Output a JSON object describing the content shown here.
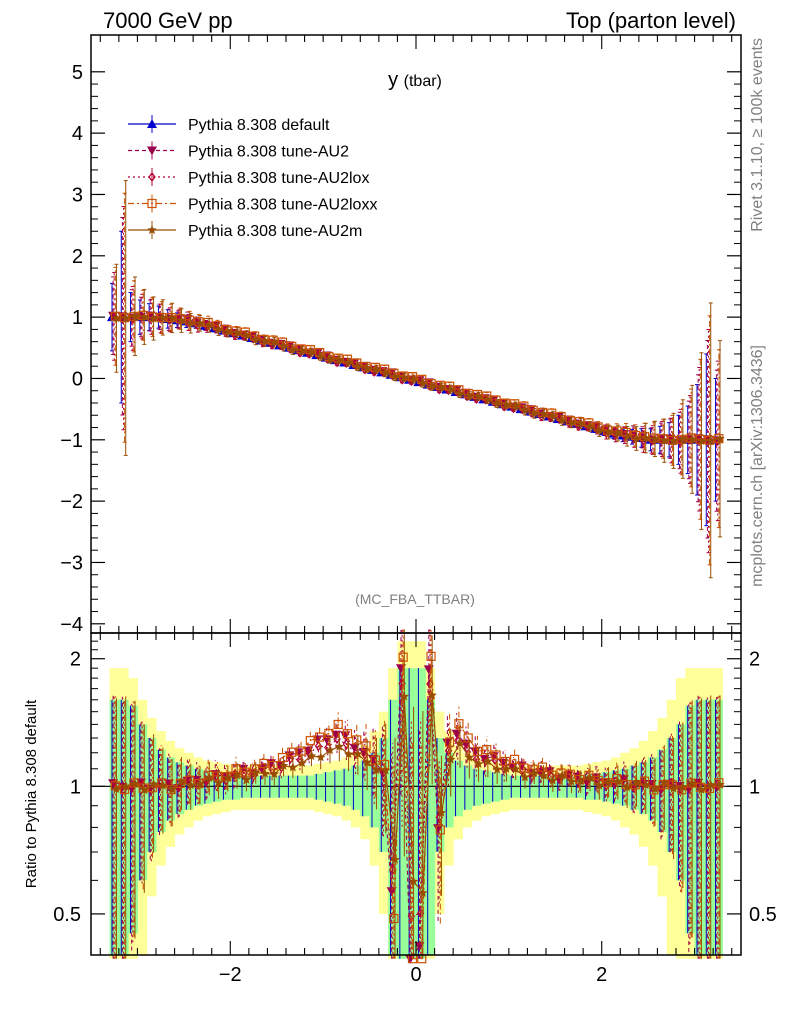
{
  "header": {
    "left": "7000 GeV pp",
    "right": "Top (parton level)"
  },
  "side_text": {
    "rivet": "Rivet 3.1.10, ≥ 100k events",
    "mcplots": "mcplots.cern.ch [arXiv:1306.3436]"
  },
  "chart_data": [
    {
      "type": "line",
      "title": "y (tbar)",
      "title_main": "y",
      "title_sub": "(tbar)",
      "watermark": "(MC_FBA_TTBAR)",
      "xlim": [
        -3.5,
        3.5
      ],
      "ylim": [
        -4.15,
        5.6
      ],
      "y_ticks": [
        -4,
        -3,
        -2,
        -1,
        0,
        1,
        2,
        3,
        4,
        5
      ],
      "y_tick_labels": [
        "−4",
        "−3",
        "−2",
        "−1",
        "0",
        "1",
        "2",
        "3",
        "4",
        "5"
      ],
      "legend_position": "top-left",
      "series": [
        {
          "name": "Pythia 8.308 default",
          "color": "#0000cc",
          "marker": "triangle-up",
          "dash": "solid",
          "offset": 0.0
        },
        {
          "name": "Pythia 8.308 tune-AU2",
          "color": "#99004d",
          "marker": "triangle-down",
          "dash": "4,3",
          "offset": 0.02
        },
        {
          "name": "Pythia 8.308 tune-AU2lox",
          "color": "#b30033",
          "marker": "diamond-open",
          "dash": "2,3",
          "offset": -0.02
        },
        {
          "name": "Pythia 8.308 tune-AU2loxx",
          "color": "#cc5200",
          "marker": "square-open",
          "dash": "6,3,2,3",
          "offset": 0.035
        },
        {
          "name": "Pythia 8.308 tune-AU2m",
          "color": "#994d00",
          "marker": "star",
          "dash": "solid",
          "offset": -0.01
        }
      ],
      "x": [
        -3.25,
        -3.15,
        -3.05,
        -2.95,
        -2.85,
        -2.75,
        -2.65,
        -2.55,
        -2.45,
        -2.35,
        -2.25,
        -2.15,
        -2.05,
        -1.95,
        -1.85,
        -1.75,
        -1.65,
        -1.55,
        -1.45,
        -1.35,
        -1.25,
        -1.15,
        -1.05,
        -0.95,
        -0.85,
        -0.75,
        -0.65,
        -0.55,
        -0.45,
        -0.35,
        -0.25,
        -0.15,
        -0.05,
        0.05,
        0.15,
        0.25,
        0.35,
        0.45,
        0.55,
        0.65,
        0.75,
        0.85,
        0.95,
        1.05,
        1.15,
        1.25,
        1.35,
        1.45,
        1.55,
        1.65,
        1.75,
        1.85,
        1.95,
        2.05,
        2.15,
        2.25,
        2.35,
        2.45,
        2.55,
        2.65,
        2.75,
        2.85,
        2.95,
        3.05,
        3.15,
        3.25
      ],
      "values": [
        1.0,
        1.0,
        1.0,
        1.0,
        1.0,
        1.0,
        0.97,
        0.95,
        0.93,
        0.9,
        0.86,
        0.82,
        0.78,
        0.74,
        0.7,
        0.66,
        0.62,
        0.58,
        0.54,
        0.5,
        0.46,
        0.42,
        0.38,
        0.34,
        0.3,
        0.26,
        0.22,
        0.18,
        0.14,
        0.1,
        0.06,
        0.02,
        -0.02,
        -0.06,
        -0.1,
        -0.14,
        -0.18,
        -0.22,
        -0.26,
        -0.3,
        -0.34,
        -0.38,
        -0.42,
        -0.46,
        -0.5,
        -0.54,
        -0.58,
        -0.62,
        -0.66,
        -0.7,
        -0.74,
        -0.78,
        -0.82,
        -0.86,
        -0.9,
        -0.93,
        -0.95,
        -0.97,
        -1.0,
        -1.0,
        -1.0,
        -1.0,
        -1.0,
        -1.0,
        -1.0,
        -1.0
      ],
      "errors": [
        0.55,
        1.4,
        0.4,
        0.28,
        0.22,
        0.18,
        0.15,
        0.12,
        0.1,
        0.08,
        0.07,
        0.06,
        0.05,
        0.05,
        0.05,
        0.05,
        0.05,
        0.05,
        0.05,
        0.05,
        0.04,
        0.04,
        0.04,
        0.04,
        0.04,
        0.04,
        0.04,
        0.04,
        0.04,
        0.04,
        0.04,
        0.04,
        0.04,
        0.04,
        0.04,
        0.04,
        0.04,
        0.04,
        0.04,
        0.04,
        0.04,
        0.04,
        0.04,
        0.04,
        0.05,
        0.05,
        0.05,
        0.05,
        0.05,
        0.05,
        0.05,
        0.05,
        0.06,
        0.07,
        0.08,
        0.1,
        0.12,
        0.15,
        0.18,
        0.22,
        0.28,
        0.4,
        0.55,
        0.9,
        1.4,
        1.0
      ]
    },
    {
      "type": "line",
      "ylabel": "Ratio to Pythia 8.308 default",
      "xlim": [
        -3.5,
        3.5
      ],
      "ylim": [
        0.4,
        2.3
      ],
      "y_scale": "log",
      "x_ticks": [
        -2,
        0,
        2
      ],
      "x_tick_labels": [
        "−2",
        "0",
        "2"
      ],
      "y_ticks": [
        0.5,
        1,
        2
      ],
      "y_tick_labels": [
        "0.5",
        "1",
        "2"
      ],
      "bands": {
        "green_halfwidth": [
          0.6,
          0.6,
          0.55,
          0.4,
          0.3,
          0.22,
          0.17,
          0.14,
          0.12,
          0.1,
          0.09,
          0.08,
          0.07,
          0.07,
          0.06,
          0.06,
          0.06,
          0.06,
          0.06,
          0.06,
          0.06,
          0.06,
          0.07,
          0.08,
          0.09,
          0.1,
          0.12,
          0.15,
          0.2,
          0.3,
          0.6,
          0.9,
          0.9,
          0.9,
          0.6,
          0.3,
          0.2,
          0.15,
          0.12,
          0.1,
          0.09,
          0.08,
          0.07,
          0.06,
          0.06,
          0.06,
          0.06,
          0.06,
          0.06,
          0.06,
          0.06,
          0.07,
          0.07,
          0.08,
          0.09,
          0.1,
          0.12,
          0.14,
          0.17,
          0.22,
          0.3,
          0.4,
          0.55,
          0.6,
          0.6,
          0.6
        ],
        "yellow_halfwidth": [
          0.9,
          0.9,
          0.8,
          0.6,
          0.45,
          0.35,
          0.28,
          0.23,
          0.2,
          0.17,
          0.15,
          0.14,
          0.13,
          0.12,
          0.12,
          0.12,
          0.12,
          0.12,
          0.12,
          0.12,
          0.12,
          0.12,
          0.13,
          0.14,
          0.15,
          0.17,
          0.2,
          0.25,
          0.35,
          0.5,
          0.9,
          1.2,
          1.2,
          1.2,
          0.9,
          0.5,
          0.35,
          0.25,
          0.2,
          0.17,
          0.15,
          0.14,
          0.13,
          0.12,
          0.12,
          0.12,
          0.12,
          0.12,
          0.12,
          0.12,
          0.12,
          0.13,
          0.14,
          0.15,
          0.17,
          0.2,
          0.23,
          0.28,
          0.35,
          0.45,
          0.6,
          0.8,
          0.9,
          0.9,
          0.9,
          0.9
        ]
      },
      "series_ratio_shape": [
        0.0,
        0.0,
        0.0,
        0.0,
        0.0,
        0.0,
        0.0,
        0.01,
        0.02,
        0.03,
        0.04,
        0.05,
        0.06,
        0.07,
        0.08,
        0.09,
        0.1,
        0.12,
        0.14,
        0.17,
        0.2,
        0.23,
        0.27,
        0.3,
        0.33,
        0.3,
        0.25,
        0.2,
        0.15,
        0.1,
        -0.45,
        0.9,
        -0.6,
        -0.6,
        0.9,
        -0.2,
        0.25,
        0.35,
        0.25,
        0.2,
        0.18,
        0.16,
        0.14,
        0.12,
        0.1,
        0.09,
        0.08,
        0.07,
        0.06,
        0.05,
        0.05,
        0.04,
        0.03,
        0.03,
        0.02,
        0.02,
        0.01,
        0.01,
        0.0,
        0.0,
        0.0,
        0.0,
        0.0,
        0.0,
        0.0,
        0.0
      ]
    }
  ]
}
